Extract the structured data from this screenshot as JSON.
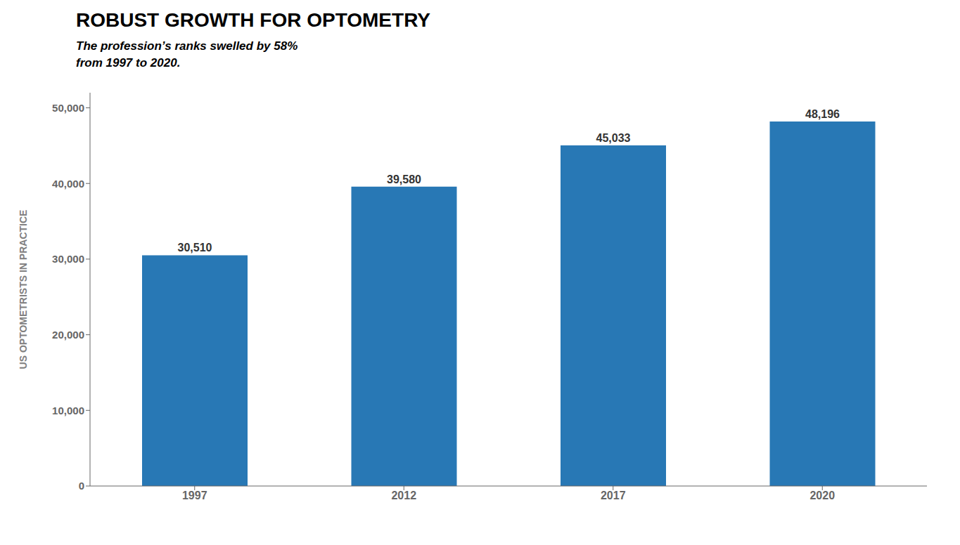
{
  "chart_data": {
    "type": "bar",
    "title": "ROBUST GROWTH FOR OPTOMETRY",
    "subtitle": "The profession’s ranks swelled by 58%\nfrom 1997 to 2020.",
    "categories": [
      "1997",
      "2012",
      "2017",
      "2020"
    ],
    "values": [
      30510,
      39580,
      45033,
      48196
    ],
    "value_labels": [
      "30,510",
      "39,580",
      "45,033",
      "48,196"
    ],
    "data_labels": true,
    "color": "#2878b5",
    "ylabel": "US OPTOMETRISTS IN PRACTICE",
    "ylim": [
      0,
      52000
    ],
    "yticks": [
      0,
      {
        "value": 10000,
        "label": "10,000"
      },
      {
        "value": 20000,
        "label": "20,000"
      },
      {
        "value": 30000,
        "label": "30,000"
      },
      {
        "value": 40000,
        "label": "40,000"
      },
      {
        "value": 50000,
        "label": "50,000"
      }
    ],
    "grid": false
  }
}
